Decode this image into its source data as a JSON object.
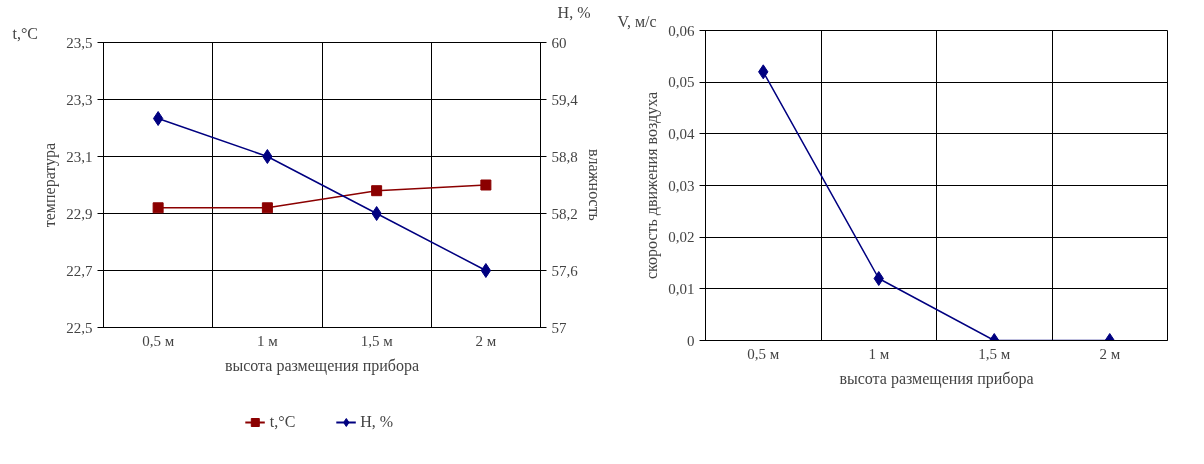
{
  "chart_data": [
    {
      "type": "line",
      "categories": [
        "0,5 м",
        "1 м",
        "1,5 м",
        "2 м"
      ],
      "xlabel": "высота размещения прибора",
      "ylabel": "температура",
      "y2label": "влажность",
      "ylim": [
        22.5,
        23.5
      ],
      "yticks": [
        {
          "value": 22.5,
          "label": "22,5"
        },
        {
          "value": 22.7,
          "label": "22,7"
        },
        {
          "value": 22.9,
          "label": "22,9"
        },
        {
          "value": 23.1,
          "label": "23,1"
        },
        {
          "value": 23.3,
          "label": "23,3"
        },
        {
          "value": 23.5,
          "label": "23,5"
        }
      ],
      "y2lim": [
        57,
        60
      ],
      "y2ticks": [
        57,
        {
          "value": 57.6,
          "label": "57,6"
        },
        {
          "value": 58.2,
          "label": "58,2"
        },
        {
          "value": 58.8,
          "label": "58,8"
        },
        {
          "value": 59.4,
          "label": "59,4"
        },
        60
      ],
      "annotations": [
        "t,°C",
        "H, %"
      ],
      "grid": true,
      "legend": "bottom",
      "series": [
        {
          "name": "t,°C",
          "color": "#8b0000",
          "marker": "square",
          "values": [
            22.92,
            22.92,
            22.98,
            23.0
          ]
        },
        {
          "name": "H, %",
          "color": "#000080",
          "marker": "diamond",
          "axis": "y2",
          "values": [
            59.2,
            58.8,
            58.2,
            57.6
          ]
        }
      ]
    },
    {
      "type": "line",
      "categories": [
        "0,5 м",
        "1 м",
        "1,5 м",
        "2 м"
      ],
      "xlabel": "высота размещения прибора",
      "ylabel": "скорость движения воздуха",
      "ylim": [
        0,
        0.06
      ],
      "yticks": [
        0,
        {
          "value": 0.01,
          "label": "0,01"
        },
        {
          "value": 0.02,
          "label": "0,02"
        },
        {
          "value": 0.03,
          "label": "0,03"
        },
        {
          "value": 0.04,
          "label": "0,04"
        },
        {
          "value": 0.05,
          "label": "0,05"
        },
        {
          "value": 0.06,
          "label": "0,06"
        }
      ],
      "annotations": [
        "V, м/с"
      ],
      "grid": true,
      "legend": false,
      "series": [
        {
          "color": "#000080",
          "marker": "diamond",
          "values": [
            0.052,
            0.012,
            0,
            0
          ]
        }
      ]
    }
  ]
}
